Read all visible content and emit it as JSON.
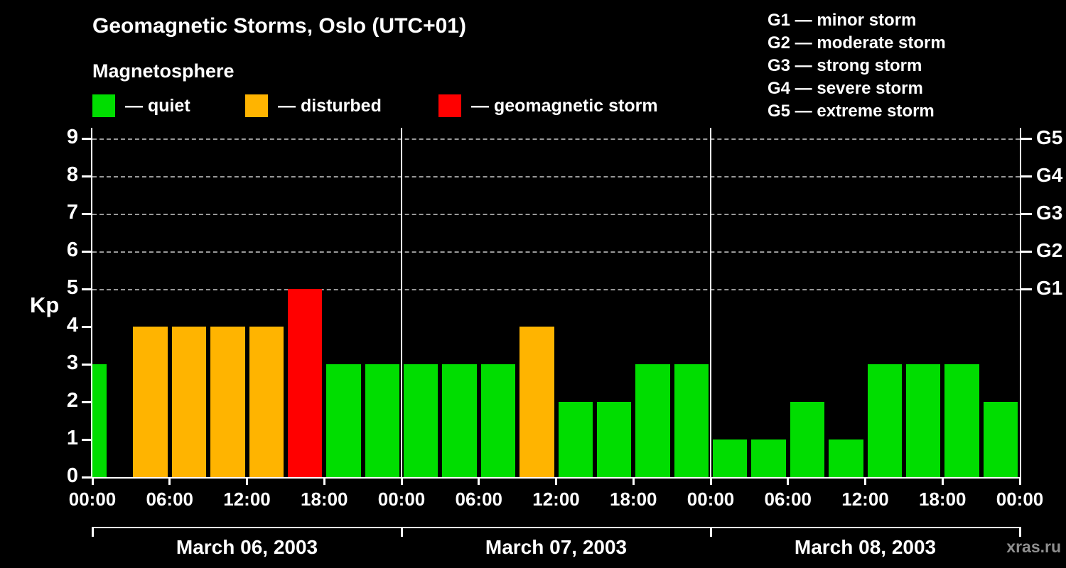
{
  "title": "Geomagnetic Storms, Oslo (UTC+01)",
  "subtitle": "Magnetosphere",
  "kp_axis_label": "Kp",
  "watermark": "xras.ru",
  "legend": {
    "quiet": {
      "label": "— quiet",
      "color": "#00dd00"
    },
    "disturbed": {
      "label": "— disturbed",
      "color": "#ffb400"
    },
    "storm": {
      "label": "— geomagnetic storm",
      "color": "#ff0000"
    }
  },
  "g_scale_legend": [
    "G1 — minor storm",
    "G2 — moderate storm",
    "G3 — strong storm",
    "G4 — severe storm",
    "G5 — extreme storm"
  ],
  "y_axis": {
    "label": "Kp",
    "ticks": [
      0,
      1,
      2,
      3,
      4,
      5,
      6,
      7,
      8,
      9
    ]
  },
  "right_axis_labels": [
    "G5",
    "G4",
    "G3",
    "G2",
    "G1"
  ],
  "x_axis": {
    "time_labels": [
      "00:00",
      "06:00",
      "12:00",
      "18:00",
      "00:00",
      "06:00",
      "12:00",
      "18:00",
      "00:00",
      "06:00",
      "12:00",
      "18:00",
      "00:00"
    ],
    "date_labels": [
      "March 06, 2003",
      "March 07, 2003",
      "March 08, 2003"
    ]
  },
  "chart_data": {
    "type": "bar",
    "title": "Geomagnetic Storms, Oslo (UTC+01)",
    "subtitle": "Magnetosphere",
    "ylabel": "Kp",
    "ylim": [
      0,
      9.3
    ],
    "x_unit": "3-hour Kp index intervals, 8 per day",
    "days": [
      {
        "date": "March 06, 2003",
        "values": [
          3,
          4,
          4,
          4,
          4,
          5,
          3,
          3
        ]
      },
      {
        "date": "March 07, 2003",
        "values": [
          3,
          3,
          3,
          4,
          2,
          2,
          3,
          3
        ]
      },
      {
        "date": "March 08, 2003",
        "values": [
          1,
          1,
          2,
          1,
          3,
          3,
          3,
          2
        ]
      }
    ],
    "color_rule": {
      "quiet_max": 3,
      "disturbed_value": 4,
      "storm_min": 5
    },
    "bar_colors": {
      "quiet": "#00dd00",
      "disturbed": "#ffb400",
      "storm": "#ff0000"
    },
    "gridlines_kp": [
      5,
      6,
      7,
      8,
      9
    ],
    "legend_position": "top-left",
    "grid": "dashed horizontal at G-storm levels only"
  }
}
